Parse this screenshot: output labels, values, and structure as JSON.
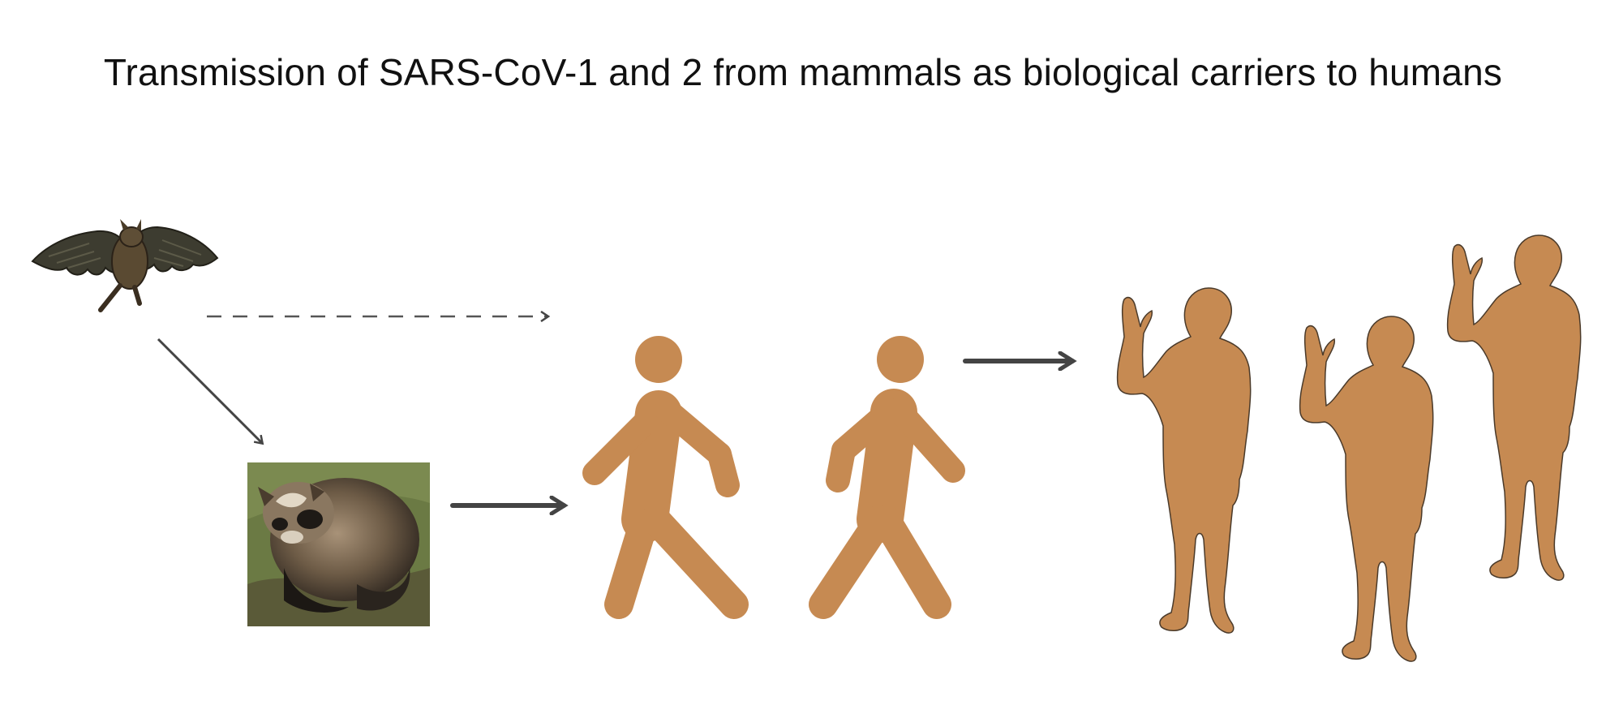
{
  "title": "Transmission of SARS-CoV-1 and 2 from mammals as biological carriers to humans",
  "colors": {
    "figure": "#C68A52",
    "figure_outline": "#4a3a2a",
    "arrow": "#444444",
    "dashed_arrow": "#555555",
    "bat_wing": "#3f3f33",
    "bat_body": "#5a4a32",
    "dog_fur": "#6b5a45",
    "grass": "#6f7f45"
  },
  "icons": {
    "bat": "bat-image",
    "raccoon_dog": "raccoon-dog-photo",
    "walking_person": "walking-person-icon",
    "waving_person": "waving-person-silhouette"
  }
}
